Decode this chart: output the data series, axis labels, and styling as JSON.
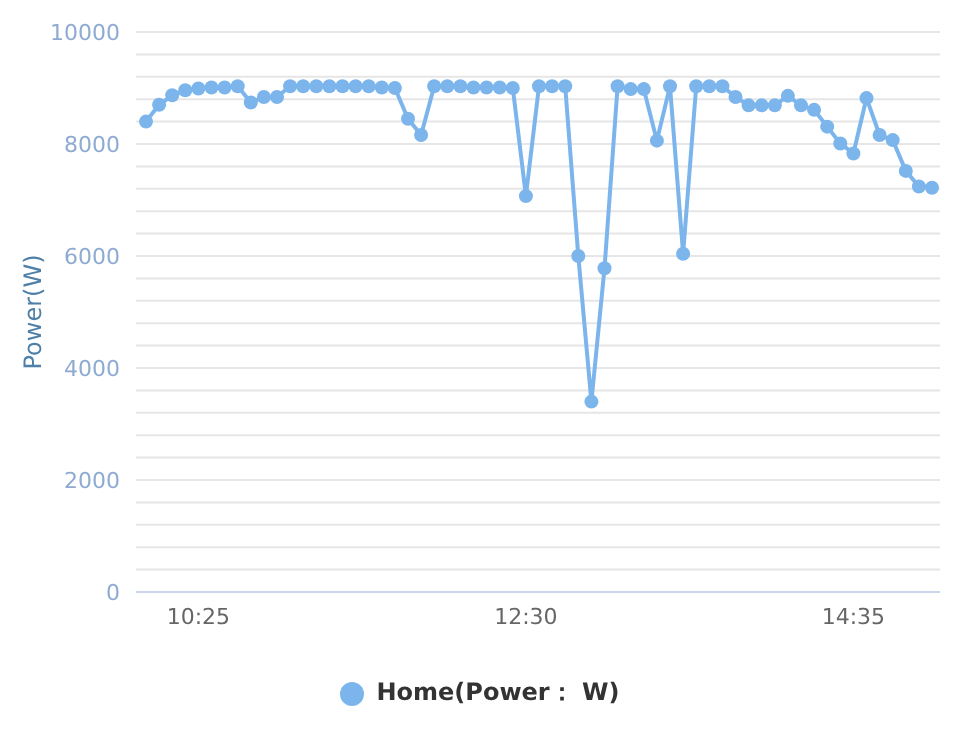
{
  "chart_data": {
    "type": "line",
    "ylabel": "Power(W)",
    "categories": [
      null,
      null,
      null,
      null,
      "10:25",
      null,
      null,
      null,
      null,
      null,
      null,
      null,
      null,
      null,
      null,
      null,
      null,
      null,
      null,
      null,
      null,
      null,
      null,
      null,
      null,
      null,
      null,
      null,
      null,
      "12:30",
      null,
      null,
      null,
      null,
      null,
      null,
      null,
      null,
      null,
      null,
      null,
      null,
      null,
      null,
      null,
      null,
      null,
      null,
      null,
      null,
      null,
      null,
      null,
      null,
      "14:35",
      null,
      null,
      null,
      null,
      null,
      null
    ],
    "series": [
      {
        "name": "Home(Power： W)",
        "color": "#7cb5ec",
        "values": [
          8400,
          8700,
          8870,
          8960,
          8990,
          9010,
          9010,
          9030,
          8740,
          8840,
          8840,
          9030,
          9030,
          9030,
          9030,
          9030,
          9030,
          9030,
          9010,
          9000,
          8450,
          8160,
          9030,
          9030,
          9030,
          9010,
          9010,
          9010,
          9000,
          7070,
          9030,
          9030,
          9030,
          6000,
          3400,
          5780,
          9030,
          8980,
          8980,
          8060,
          9030,
          6040,
          9030,
          9030,
          9030,
          8840,
          8690,
          8690,
          8690,
          8860,
          8690,
          8610,
          8310,
          8010,
          7830,
          8820,
          8160,
          8070,
          7520,
          7240,
          7220
        ]
      }
    ],
    "ylim": [
      0,
      10000
    ],
    "yticks": [
      0,
      {
        "value": 400,
        "label": null
      },
      {
        "value": 800,
        "label": null
      },
      {
        "value": 1200,
        "label": null
      },
      {
        "value": 1600,
        "label": null
      },
      2000,
      {
        "value": 2400,
        "label": null
      },
      {
        "value": 2800,
        "label": null
      },
      {
        "value": 3200,
        "label": null
      },
      {
        "value": 3600,
        "label": null
      },
      4000,
      {
        "value": 4400,
        "label": null
      },
      {
        "value": 4800,
        "label": null
      },
      {
        "value": 5200,
        "label": null
      },
      {
        "value": 5600,
        "label": null
      },
      6000,
      {
        "value": 6400,
        "label": null
      },
      {
        "value": 6800,
        "label": null
      },
      {
        "value": 7200,
        "label": null
      },
      {
        "value": 7600,
        "label": null
      },
      8000,
      {
        "value": 8400,
        "label": null
      },
      {
        "value": 8800,
        "label": null
      },
      {
        "value": 9200,
        "label": null
      },
      {
        "value": 9600,
        "label": null
      },
      10000
    ],
    "grid": "y",
    "legend": "bottom",
    "marker": "circle",
    "line_style": "solid"
  }
}
